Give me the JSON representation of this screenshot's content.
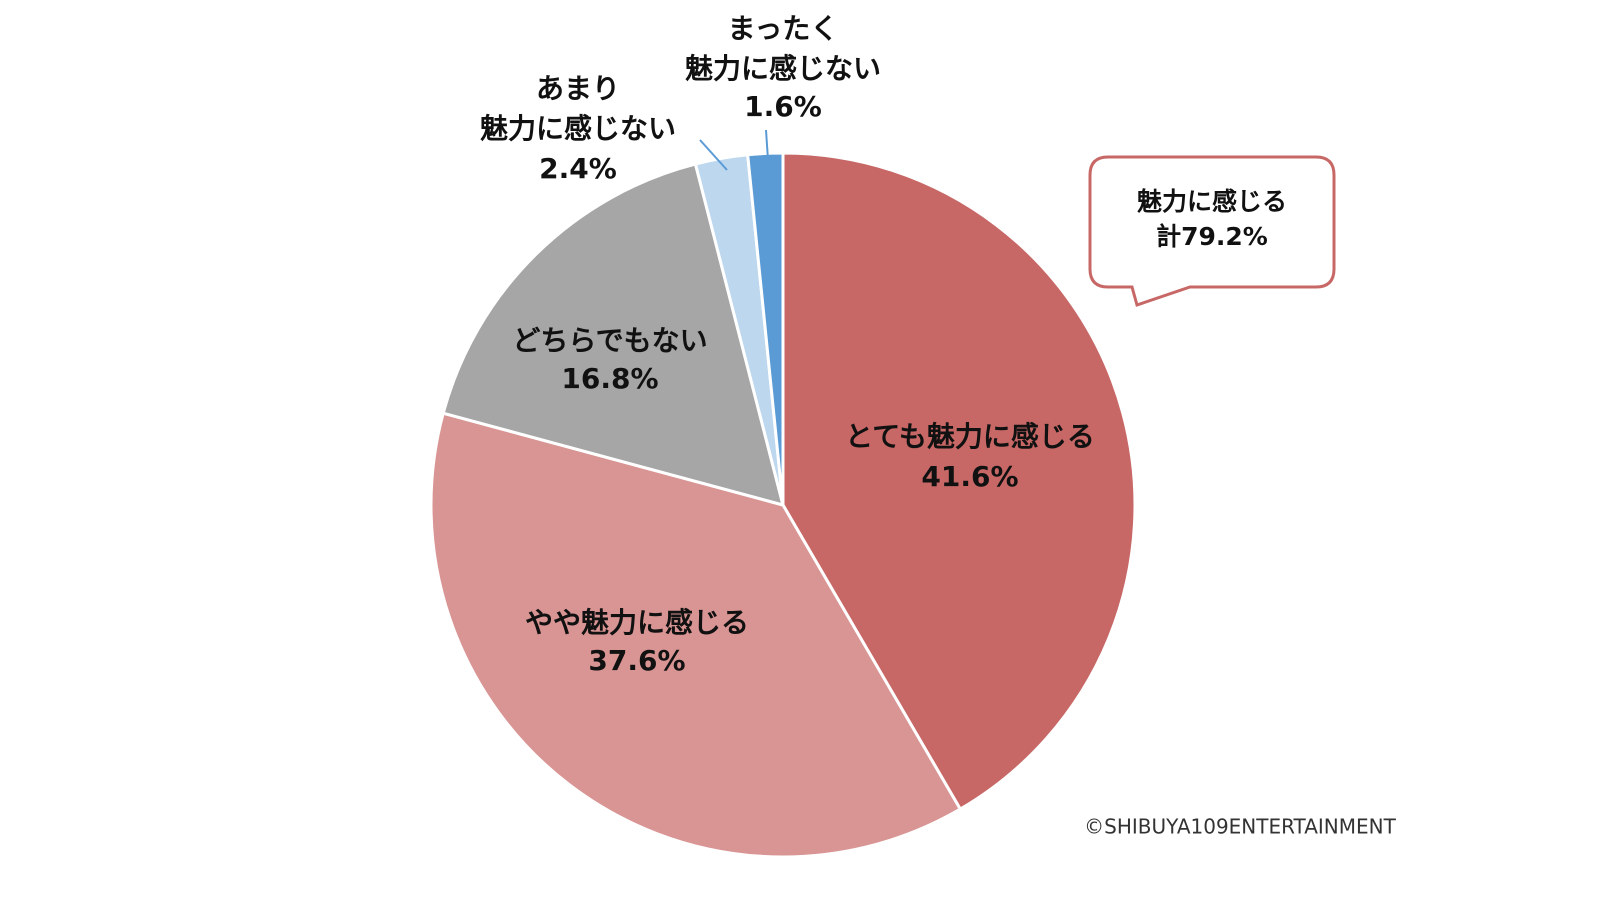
{
  "chart_data": {
    "type": "pie",
    "categories": [
      "とても魅力に感じる",
      "やや魅力に感じる",
      "どちらでもない",
      "あまり\n魅力に感じない",
      "まったく\n魅力に感じない"
    ],
    "values": [
      41.6,
      37.6,
      16.8,
      2.4,
      1.6
    ],
    "value_labels": [
      "41.6%",
      "37.6%",
      "16.8%",
      "2.4%",
      "1.6%"
    ],
    "colors": [
      "#c76866",
      "#d99594",
      "#a6a6a6",
      "#bdd7ee",
      "#5b9bd5"
    ],
    "annotation": "魅力に感じる\n計79.2%",
    "source": "©SHIBUYA109ENTERTAINMENT"
  }
}
